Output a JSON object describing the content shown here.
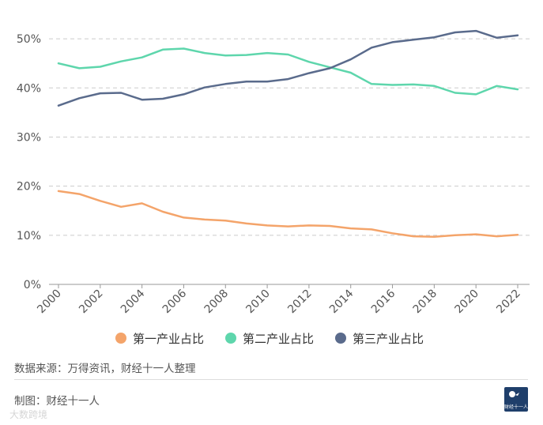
{
  "chart_data": {
    "type": "line",
    "title": "",
    "xlabel": "",
    "ylabel": "",
    "ylim": [
      0,
      55
    ],
    "ytick_values": [
      0,
      10,
      20,
      30,
      40,
      50
    ],
    "ytick_labels": [
      "0%",
      "10%",
      "20%",
      "30%",
      "40%",
      "50%"
    ],
    "x": [
      2000,
      2001,
      2002,
      2003,
      2004,
      2005,
      2006,
      2007,
      2008,
      2009,
      2010,
      2011,
      2012,
      2013,
      2014,
      2015,
      2016,
      2017,
      2018,
      2019,
      2020,
      2021,
      2022
    ],
    "xtick_labels": [
      "2000",
      "2002",
      "2004",
      "2006",
      "2008",
      "2010",
      "2012",
      "2014",
      "2016",
      "2018",
      "2020",
      "2022"
    ],
    "series": [
      {
        "name": "第一产业占比",
        "color": "#f4a46a",
        "values": [
          19.0,
          18.4,
          17.0,
          15.8,
          16.5,
          14.8,
          13.6,
          13.2,
          13.0,
          12.4,
          12.0,
          11.8,
          12.0,
          11.9,
          11.4,
          11.2,
          10.4,
          9.8,
          9.7,
          10.0,
          10.2,
          9.8,
          10.1
        ]
      },
      {
        "name": "第二产业占比",
        "color": "#5ed6ac",
        "values": [
          45.0,
          44.0,
          44.3,
          45.4,
          46.2,
          47.8,
          48.0,
          47.1,
          46.6,
          46.7,
          47.1,
          46.8,
          45.3,
          44.2,
          43.1,
          40.8,
          40.6,
          40.7,
          40.4,
          39.0,
          38.7,
          40.4,
          39.7
        ]
      },
      {
        "name": "第三产业占比",
        "color": "#5a6b8c",
        "values": [
          36.4,
          37.9,
          38.9,
          39.0,
          37.6,
          37.8,
          38.7,
          40.1,
          40.8,
          41.3,
          41.3,
          41.8,
          43.0,
          44.0,
          45.8,
          48.2,
          49.3,
          49.8,
          50.3,
          51.3,
          51.6,
          50.2,
          50.7
        ]
      }
    ],
    "grid": true,
    "legend_position": "bottom"
  },
  "footer": {
    "source": "数据来源：万得资讯，财经十一人整理",
    "credit": "制图：财经十一人",
    "watermark": "大数跨境",
    "logo_text": "财经十一人"
  }
}
